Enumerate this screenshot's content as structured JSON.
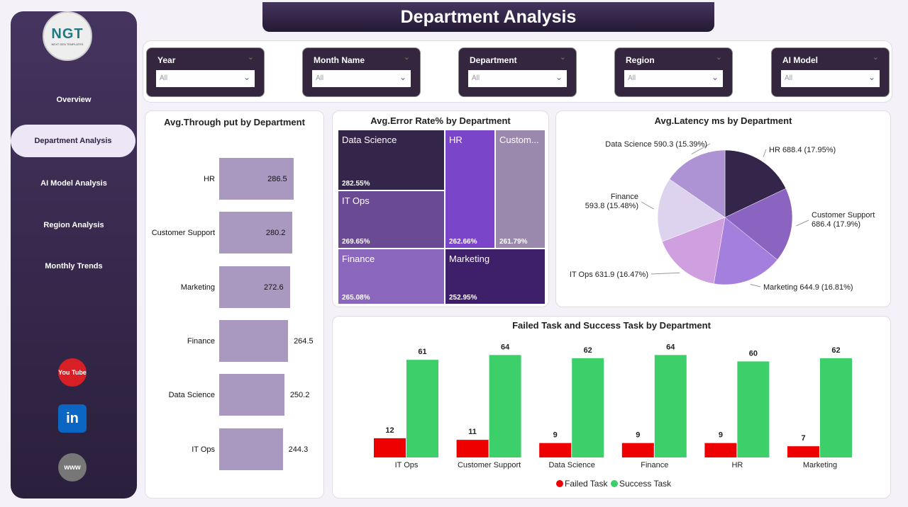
{
  "sidebar": {
    "logo_text": "NGT",
    "logo_sub": "NEXT GEN TEMPLATES",
    "items": [
      {
        "label": "Overview"
      },
      {
        "label": "Department Analysis"
      },
      {
        "label": "AI Model Analysis"
      },
      {
        "label": "Region Analysis"
      },
      {
        "label": "Monthly Trends"
      }
    ],
    "active": "Department Analysis",
    "social": [
      {
        "icon": "youtube-icon",
        "label": "You Tube"
      },
      {
        "icon": "linkedin-icon",
        "label": "in"
      },
      {
        "icon": "globe-icon",
        "label": "www"
      }
    ]
  },
  "header": {
    "title": "Department Analysis"
  },
  "filters": [
    {
      "label": "Year",
      "value": "All"
    },
    {
      "label": "Month Name",
      "value": "All"
    },
    {
      "label": "Department",
      "value": "All"
    },
    {
      "label": "Region",
      "value": "All"
    },
    {
      "label": "AI Model",
      "value": "All"
    }
  ],
  "chart_data": [
    {
      "type": "bar",
      "orientation": "horizontal",
      "title": "Avg.Through put by Department",
      "categories": [
        "HR",
        "Customer Support",
        "Marketing",
        "Finance",
        "Data Science",
        "IT Ops"
      ],
      "values": [
        286.5,
        280.2,
        272.6,
        264.5,
        250.2,
        244.3
      ],
      "color": "#a999c1"
    },
    {
      "type": "treemap",
      "title": "Avg.Error Rate% by Department",
      "categories": [
        "Data Science",
        "IT Ops",
        "Finance",
        "HR",
        "Custom...",
        "Marketing"
      ],
      "values": [
        "282.55%",
        "269.65%",
        "265.08%",
        "262.66%",
        "261.79%",
        "252.95%"
      ],
      "colors": [
        "#33264a",
        "#6a4a92",
        "#8a67bd",
        "#7a45c8",
        "#9a89ad",
        "#3e1f6a"
      ]
    },
    {
      "type": "pie",
      "title": "Avg.Latency ms by Department",
      "slices": [
        {
          "label": "HR",
          "value": 688.4,
          "pct": "17.95%",
          "color": "#33264a"
        },
        {
          "label": "Customer Support",
          "value": 686.4,
          "pct": "17.9%",
          "color": "#8b63c0"
        },
        {
          "label": "Marketing",
          "value": 644.9,
          "pct": "16.81%",
          "color": "#a57fdd"
        },
        {
          "label": "IT Ops",
          "value": 631.9,
          "pct": "16.47%",
          "color": "#d09fe0"
        },
        {
          "label": "Finance",
          "value": 593.8,
          "pct": "15.48%",
          "color": "#ddd3ee"
        },
        {
          "label": "Data Science",
          "value": 590.3,
          "pct": "15.39%",
          "color": "#ad92d4"
        }
      ]
    },
    {
      "type": "bar",
      "title": "Failed Task and Success Task by Department",
      "categories": [
        "IT Ops",
        "Customer Support",
        "Data Science",
        "Finance",
        "HR",
        "Marketing"
      ],
      "series": [
        {
          "name": "Failed Task",
          "values": [
            12,
            11,
            9,
            9,
            9,
            7
          ],
          "color": "#ee0000"
        },
        {
          "name": "Success Task",
          "values": [
            61,
            64,
            62,
            64,
            60,
            62
          ],
          "color": "#3ccf6a"
        }
      ],
      "legend": "bottom"
    }
  ]
}
